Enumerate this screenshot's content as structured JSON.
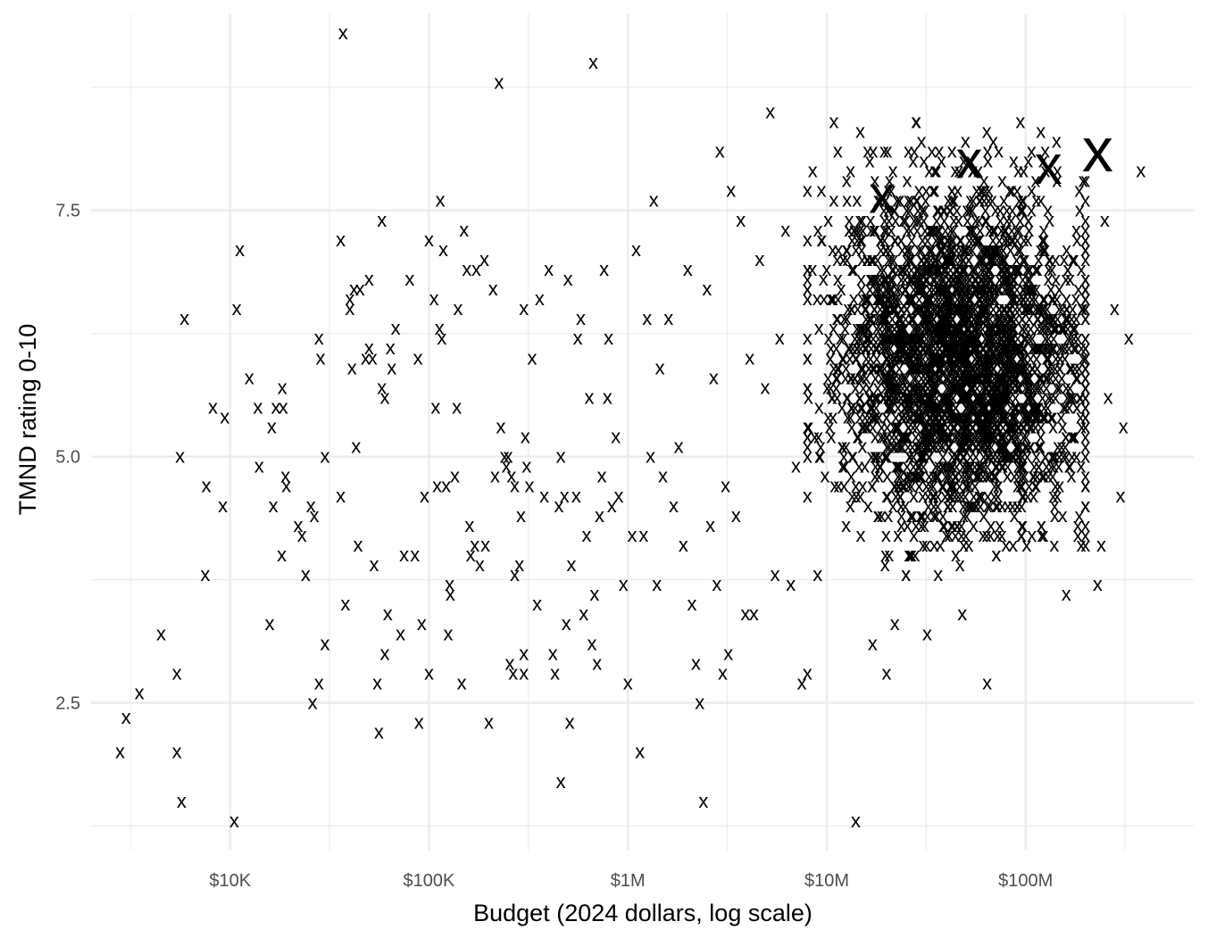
{
  "chart_data": {
    "type": "scatter",
    "title": "",
    "xlabel": "Budget (2024 dollars, log scale)",
    "ylabel": "TMND rating 0-10",
    "x_scale": "log10",
    "xlim": [
      2000,
      700000000
    ],
    "ylim": [
      1.0,
      9.5
    ],
    "x_ticks": [
      {
        "value": 10000,
        "label": "$10K"
      },
      {
        "value": 100000,
        "label": "$100K"
      },
      {
        "value": 1000000,
        "label": "$1M"
      },
      {
        "value": 10000000,
        "label": "$10M"
      },
      {
        "value": 100000000,
        "label": "$100M"
      }
    ],
    "y_ticks": [
      {
        "value": 2.5,
        "label": "2.5"
      },
      {
        "value": 5.0,
        "label": "5.0"
      },
      {
        "value": 7.5,
        "label": "7.5"
      }
    ],
    "grid": true,
    "legend": "none",
    "marker": "x",
    "colors": {
      "default": "#000000",
      "red": "#ff0000",
      "blue": "#0000ff",
      "grid": "#ebebeb",
      "tick": "#4d4d4d"
    },
    "series": [
      {
        "color": "#000000",
        "points": [
          [
            2800,
            2.0
          ],
          [
            3000,
            2.35
          ],
          [
            3500,
            2.6
          ],
          [
            4500,
            3.2
          ],
          [
            5400,
            2.8
          ],
          [
            5400,
            2.0
          ],
          [
            5600,
            5.0
          ],
          [
            5700,
            1.5
          ],
          [
            5900,
            6.4
          ],
          [
            7500,
            3.8
          ],
          [
            7600,
            4.7
          ],
          [
            8200,
            5.5
          ],
          [
            9200,
            4.5
          ],
          [
            9400,
            5.4
          ],
          [
            10500,
            1.3
          ],
          [
            10800,
            6.5
          ],
          [
            11200,
            7.1
          ],
          [
            12500,
            5.8
          ],
          [
            13800,
            5.5
          ],
          [
            14000,
            4.9
          ],
          [
            15800,
            3.3
          ],
          [
            16200,
            5.3
          ],
          [
            16500,
            4.5
          ],
          [
            17000,
            5.5
          ],
          [
            18200,
            4.0
          ],
          [
            18300,
            5.7
          ],
          [
            18500,
            5.5
          ],
          [
            19000,
            4.8
          ],
          [
            19200,
            4.7
          ],
          [
            22000,
            4.3
          ],
          [
            23000,
            4.2
          ],
          [
            24000,
            3.8
          ],
          [
            25500,
            4.5
          ],
          [
            26000,
            2.5
          ],
          [
            26500,
            4.4
          ],
          [
            28000,
            2.7
          ],
          [
            28000,
            6.2
          ],
          [
            28500,
            6.0
          ],
          [
            30000,
            5.0
          ],
          [
            30000,
            3.1
          ],
          [
            36000,
            4.6
          ],
          [
            36000,
            7.2
          ],
          [
            37000,
            9.3
          ],
          [
            38000,
            3.5
          ],
          [
            40000,
            6.5
          ],
          [
            40000,
            6.6
          ],
          [
            41000,
            5.9
          ],
          [
            42000,
            6.7
          ],
          [
            43000,
            5.1
          ],
          [
            44000,
            4.1
          ],
          [
            45000,
            6.7
          ],
          [
            48000,
            6.0
          ],
          [
            50000,
            6.1
          ],
          [
            50000,
            6.8
          ],
          [
            52000,
            6.0
          ],
          [
            53000,
            3.9
          ],
          [
            55000,
            2.7
          ],
          [
            56000,
            2.2
          ],
          [
            58000,
            5.7
          ],
          [
            58000,
            7.4
          ],
          [
            60000,
            3.0
          ],
          [
            60000,
            5.6
          ],
          [
            62000,
            3.4
          ],
          [
            64000,
            6.1
          ],
          [
            65000,
            5.9
          ],
          [
            68000,
            6.3
          ],
          [
            72000,
            3.2
          ],
          [
            75000,
            4.0
          ],
          [
            80000,
            6.8
          ],
          [
            85000,
            4.0
          ],
          [
            88000,
            6.0
          ],
          [
            89000,
            2.3
          ],
          [
            92000,
            3.3
          ],
          [
            95000,
            4.6
          ],
          [
            100000,
            7.2
          ],
          [
            100000,
            2.8
          ],
          [
            106000,
            6.6
          ],
          [
            108000,
            5.5
          ],
          [
            110000,
            4.7
          ],
          [
            113000,
            6.3
          ],
          [
            114000,
            7.6
          ],
          [
            116000,
            6.2
          ],
          [
            118000,
            7.1
          ],
          [
            122000,
            4.7
          ],
          [
            125000,
            3.2
          ],
          [
            127000,
            3.7
          ],
          [
            128000,
            3.6
          ],
          [
            135000,
            4.8
          ],
          [
            138000,
            5.5
          ],
          [
            140000,
            6.5
          ],
          [
            146000,
            2.7
          ],
          [
            150000,
            7.3
          ],
          [
            155000,
            6.9
          ],
          [
            160000,
            4.3
          ],
          [
            162000,
            4.0
          ],
          [
            170000,
            4.1
          ],
          [
            173000,
            6.9
          ],
          [
            180000,
            3.9
          ],
          [
            190000,
            7.0
          ],
          [
            192000,
            4.1
          ],
          [
            200000,
            2.3
          ],
          [
            210000,
            6.7
          ],
          [
            215000,
            4.8
          ],
          [
            225000,
            8.8
          ],
          [
            230000,
            5.3
          ],
          [
            240000,
            5.0
          ],
          [
            245000,
            4.9
          ],
          [
            250000,
            5.0
          ],
          [
            255000,
            2.9
          ],
          [
            260000,
            4.8
          ],
          [
            265000,
            2.8
          ],
          [
            270000,
            4.7
          ],
          [
            270000,
            3.8
          ],
          [
            285000,
            3.9
          ],
          [
            290000,
            4.4
          ],
          [
            300000,
            3.0
          ],
          [
            300000,
            2.8
          ],
          [
            300000,
            6.5
          ],
          [
            305000,
            5.2
          ],
          [
            310000,
            4.9
          ],
          [
            320000,
            4.7
          ],
          [
            330000,
            6.0
          ],
          [
            350000,
            3.5
          ],
          [
            360000,
            6.6
          ],
          [
            380000,
            4.6
          ],
          [
            400000,
            6.9
          ],
          [
            420000,
            3.0
          ],
          [
            430000,
            2.8
          ],
          [
            450000,
            4.5
          ],
          [
            460000,
            5.0
          ],
          [
            460000,
            1.7
          ],
          [
            480000,
            4.6
          ],
          [
            490000,
            3.3
          ],
          [
            500000,
            6.8
          ],
          [
            510000,
            2.3
          ],
          [
            520000,
            3.9
          ],
          [
            550000,
            4.6
          ],
          [
            560000,
            6.2
          ],
          [
            580000,
            6.4
          ],
          [
            600000,
            3.4
          ],
          [
            620000,
            4.2
          ],
          [
            640000,
            5.6
          ],
          [
            660000,
            3.1
          ],
          [
            670000,
            9.0
          ],
          [
            680000,
            3.6
          ],
          [
            700000,
            2.9
          ],
          [
            720000,
            4.4
          ],
          [
            740000,
            4.8
          ],
          [
            760000,
            6.9
          ],
          [
            790000,
            5.6
          ],
          [
            800000,
            6.2
          ],
          [
            830000,
            4.5
          ],
          [
            870000,
            5.2
          ],
          [
            900000,
            4.6
          ],
          [
            950000,
            3.7
          ],
          [
            1000000,
            2.7
          ],
          [
            1050000,
            4.2
          ],
          [
            1100000,
            7.1
          ],
          [
            1150000,
            2.0
          ],
          [
            1200000,
            4.2
          ],
          [
            1250000,
            6.4
          ],
          [
            1300000,
            5.0
          ],
          [
            1350000,
            7.6
          ],
          [
            1400000,
            3.7
          ],
          [
            1450000,
            5.9
          ],
          [
            1500000,
            4.8
          ],
          [
            1600000,
            6.4
          ],
          [
            1700000,
            4.5
          ],
          [
            1800000,
            5.1
          ],
          [
            1900000,
            4.1
          ],
          [
            2000000,
            6.9
          ],
          [
            2100000,
            3.5
          ],
          [
            2200000,
            2.9
          ],
          [
            2300000,
            2.5
          ],
          [
            2400000,
            1.5
          ],
          [
            2500000,
            6.7
          ],
          [
            2600000,
            4.3
          ],
          [
            2700000,
            5.8
          ],
          [
            2800000,
            3.7
          ],
          [
            2900000,
            8.1
          ],
          [
            3000000,
            2.8
          ],
          [
            3100000,
            4.7
          ],
          [
            3200000,
            3.0
          ],
          [
            3300000,
            7.7
          ],
          [
            3500000,
            4.4
          ],
          [
            3700000,
            7.4
          ],
          [
            3900000,
            3.4
          ],
          [
            4100000,
            6.0
          ],
          [
            4300000,
            3.4
          ],
          [
            4600000,
            7.0
          ],
          [
            4900000,
            5.7
          ],
          [
            5200000,
            8.5
          ],
          [
            5500000,
            3.8
          ],
          [
            5800000,
            6.2
          ],
          [
            6200000,
            7.3
          ],
          [
            6600000,
            3.7
          ],
          [
            7000000,
            4.9
          ],
          [
            7500000,
            2.7
          ],
          [
            8000000,
            2.8
          ],
          [
            8500000,
            7.9
          ],
          [
            9000000,
            3.8
          ]
        ],
        "dense_cluster": {
          "x_range": [
            8000000,
            200000000
          ],
          "y_mean": 6.0,
          "y_sd": 0.85,
          "approx_count": 3000
        }
      },
      {
        "color": "#ff0000",
        "size": "large",
        "points": [
          [
            19000000,
            7.65
          ],
          [
            52000000,
            8.0
          ]
        ]
      },
      {
        "color": "#0000ff",
        "size": "large",
        "points": [
          [
            130000000,
            7.95
          ],
          [
            230000000,
            8.1
          ]
        ]
      }
    ],
    "extra_points": [
      [
        300000000,
        4.6
      ],
      [
        310000000,
        5.3
      ],
      [
        280000000,
        6.5
      ],
      [
        250000000,
        7.4
      ],
      [
        330000000,
        6.2
      ],
      [
        380000000,
        7.9
      ],
      [
        260000000,
        5.6
      ],
      [
        240000000,
        4.1
      ],
      [
        230000000,
        3.7
      ],
      [
        160000000,
        3.6
      ],
      [
        140000000,
        4.5
      ],
      [
        120000000,
        4.3
      ],
      [
        64000000,
        2.7
      ],
      [
        20000000,
        2.8
      ],
      [
        14000000,
        1.3
      ],
      [
        17000000,
        3.1
      ],
      [
        22000000,
        3.3
      ],
      [
        32000000,
        3.2
      ],
      [
        48000000,
        3.4
      ]
    ]
  }
}
